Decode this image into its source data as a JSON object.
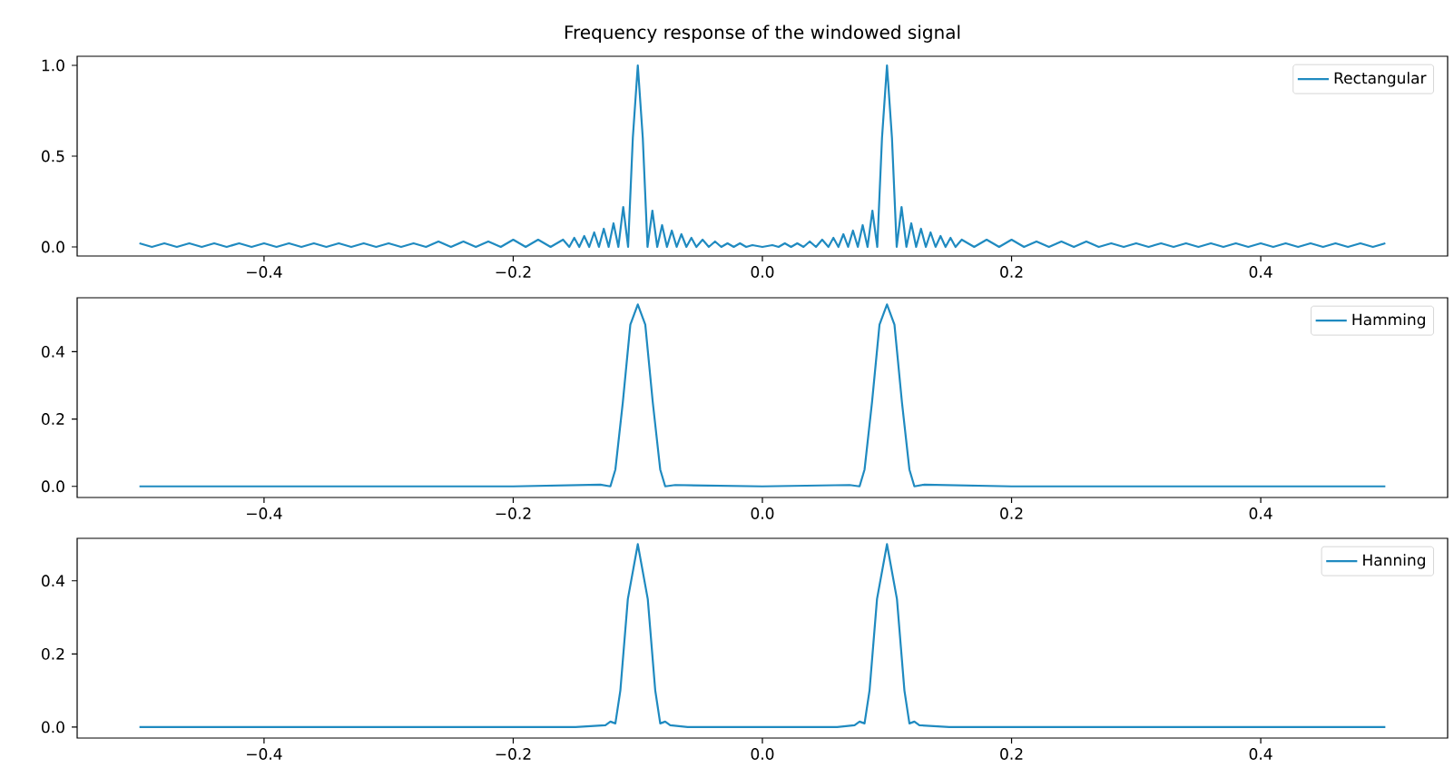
{
  "chart_data": [
    {
      "type": "line",
      "title": "Frequency response of the windowed signal",
      "legend": "top right",
      "xlim": [
        -0.55,
        0.55
      ],
      "ylim": [
        -0.05,
        1.05
      ],
      "xticks": [
        {
          "value": -0.4,
          "label": "−0.4"
        },
        {
          "value": -0.2,
          "label": "−0.2"
        },
        {
          "value": 0,
          "label": "0.0"
        },
        {
          "value": 0.2,
          "label": "0.2"
        },
        {
          "value": 0.4,
          "label": "0.4"
        }
      ],
      "yticks": [
        {
          "value": 0,
          "label": "0.0"
        },
        {
          "value": 0.5,
          "label": "0.5"
        },
        {
          "value": 1,
          "label": "1.0"
        }
      ],
      "x": [
        -0.5,
        -0.49,
        -0.48,
        -0.47,
        -0.46,
        -0.45,
        -0.44,
        -0.43,
        -0.42,
        -0.41,
        -0.4,
        -0.39,
        -0.38,
        -0.37,
        -0.36,
        -0.35,
        -0.34,
        -0.33,
        -0.32,
        -0.31,
        -0.3,
        -0.29,
        -0.28,
        -0.27,
        -0.26,
        -0.25,
        -0.24,
        -0.23,
        -0.22,
        -0.21,
        -0.2,
        -0.19,
        -0.18,
        -0.17,
        -0.16,
        -0.155,
        -0.151,
        -0.147,
        -0.143,
        -0.139,
        -0.135,
        -0.1312,
        -0.1273,
        -0.1234,
        -0.1195,
        -0.1156,
        -0.1117,
        -0.1078,
        -0.104,
        -0.1,
        -0.096,
        -0.0922,
        -0.0883,
        -0.0844,
        -0.0805,
        -0.0766,
        -0.0727,
        -0.0688,
        -0.065,
        -0.061,
        -0.057,
        -0.053,
        -0.048,
        -0.043,
        -0.038,
        -0.033,
        -0.028,
        -0.023,
        -0.018,
        -0.013,
        -0.008,
        0,
        0.008,
        0.013,
        0.018,
        0.023,
        0.028,
        0.033,
        0.038,
        0.043,
        0.048,
        0.053,
        0.057,
        0.061,
        0.065,
        0.0688,
        0.0727,
        0.0766,
        0.0805,
        0.0844,
        0.0883,
        0.0922,
        0.096,
        0.1,
        0.104,
        0.1078,
        0.1117,
        0.1156,
        0.1195,
        0.1234,
        0.1273,
        0.1312,
        0.135,
        0.139,
        0.143,
        0.147,
        0.151,
        0.155,
        0.16,
        0.17,
        0.18,
        0.19,
        0.2,
        0.21,
        0.22,
        0.23,
        0.24,
        0.25,
        0.26,
        0.27,
        0.28,
        0.29,
        0.3,
        0.31,
        0.32,
        0.33,
        0.34,
        0.35,
        0.36,
        0.37,
        0.38,
        0.39,
        0.4,
        0.41,
        0.42,
        0.43,
        0.44,
        0.45,
        0.46,
        0.47,
        0.48,
        0.49,
        0.5
      ],
      "series": [
        {
          "name": "Rectangular",
          "color": "#1f8ac0",
          "values": [
            0.02,
            0,
            0.02,
            0,
            0.02,
            0,
            0.02,
            0,
            0.02,
            0,
            0.02,
            0,
            0.02,
            0,
            0.02,
            0,
            0.02,
            0,
            0.02,
            0,
            0.02,
            0,
            0.02,
            0,
            0.03,
            0,
            0.03,
            0,
            0.03,
            0,
            0.04,
            0,
            0.04,
            0,
            0.04,
            0,
            0.05,
            0,
            0.06,
            0,
            0.08,
            0,
            0.1,
            0,
            0.13,
            0,
            0.22,
            0,
            0.6,
            1.0,
            0.6,
            0,
            0.2,
            0,
            0.12,
            0,
            0.09,
            0,
            0.07,
            0,
            0.05,
            0,
            0.04,
            0,
            0.03,
            0,
            0.02,
            0,
            0.02,
            0,
            0.01,
            0,
            0.01,
            0,
            0.02,
            0,
            0.02,
            0,
            0.03,
            0,
            0.04,
            0,
            0.05,
            0,
            0.07,
            0,
            0.09,
            0,
            0.12,
            0,
            0.2,
            0,
            0.6,
            1.0,
            0.6,
            0,
            0.22,
            0,
            0.13,
            0,
            0.1,
            0,
            0.08,
            0,
            0.06,
            0,
            0.05,
            0,
            0.04,
            0,
            0.04,
            0,
            0.04,
            0,
            0.03,
            0,
            0.03,
            0,
            0.03,
            0,
            0.02,
            0,
            0.02,
            0,
            0.02,
            0,
            0.02,
            0,
            0.02,
            0,
            0.02,
            0,
            0.02,
            0,
            0.02,
            0,
            0.02,
            0,
            0.02,
            0,
            0.02,
            0,
            0.02
          ]
        }
      ]
    },
    {
      "type": "line",
      "legend": "top right",
      "xlim": [
        -0.55,
        0.55
      ],
      "ylim": [
        -0.033,
        0.56
      ],
      "xticks": [
        {
          "value": -0.4,
          "label": "−0.4"
        },
        {
          "value": -0.2,
          "label": "−0.2"
        },
        {
          "value": 0,
          "label": "0.0"
        },
        {
          "value": 0.2,
          "label": "0.2"
        },
        {
          "value": 0.4,
          "label": "0.4"
        }
      ],
      "yticks": [
        {
          "value": 0,
          "label": "0.0"
        },
        {
          "value": 0.2,
          "label": "0.2"
        },
        {
          "value": 0.4,
          "label": "0.4"
        }
      ],
      "x": [
        -0.5,
        -0.2,
        -0.13,
        -0.122,
        -0.118,
        -0.112,
        -0.106,
        -0.1,
        -0.094,
        -0.088,
        -0.082,
        -0.078,
        -0.07,
        0,
        0.07,
        0.078,
        0.082,
        0.088,
        0.094,
        0.1,
        0.106,
        0.112,
        0.118,
        0.122,
        0.13,
        0.2,
        0.5
      ],
      "series": [
        {
          "name": "Hamming",
          "color": "#1f8ac0",
          "values": [
            0,
            0,
            0.005,
            0,
            0.05,
            0.25,
            0.48,
            0.54,
            0.48,
            0.25,
            0.05,
            0,
            0.004,
            0,
            0.004,
            0,
            0.05,
            0.25,
            0.48,
            0.54,
            0.48,
            0.25,
            0.05,
            0,
            0.005,
            0,
            0
          ]
        }
      ]
    },
    {
      "type": "line",
      "legend": "top right",
      "xlim": [
        -0.55,
        0.55
      ],
      "ylim": [
        -0.03,
        0.516
      ],
      "xticks": [
        {
          "value": -0.4,
          "label": "−0.4"
        },
        {
          "value": -0.2,
          "label": "−0.2"
        },
        {
          "value": 0,
          "label": "0.0"
        },
        {
          "value": 0.2,
          "label": "0.2"
        },
        {
          "value": 0.4,
          "label": "0.4"
        }
      ],
      "yticks": [
        {
          "value": 0,
          "label": "0.0"
        },
        {
          "value": 0.2,
          "label": "0.2"
        },
        {
          "value": 0.4,
          "label": "0.4"
        }
      ],
      "x": [
        -0.5,
        -0.15,
        -0.126,
        -0.122,
        -0.118,
        -0.114,
        -0.108,
        -0.1,
        -0.092,
        -0.086,
        -0.082,
        -0.078,
        -0.074,
        -0.06,
        0,
        0.06,
        0.074,
        0.078,
        0.082,
        0.086,
        0.092,
        0.1,
        0.108,
        0.114,
        0.118,
        0.122,
        0.126,
        0.15,
        0.5
      ],
      "series": [
        {
          "name": "Hanning",
          "color": "#1f8ac0",
          "values": [
            0,
            0,
            0.005,
            0.015,
            0.01,
            0.1,
            0.35,
            0.5,
            0.35,
            0.1,
            0.01,
            0.015,
            0.005,
            0,
            0,
            0,
            0.005,
            0.015,
            0.01,
            0.1,
            0.35,
            0.5,
            0.35,
            0.1,
            0.01,
            0.015,
            0.005,
            0,
            0
          ]
        }
      ]
    }
  ]
}
